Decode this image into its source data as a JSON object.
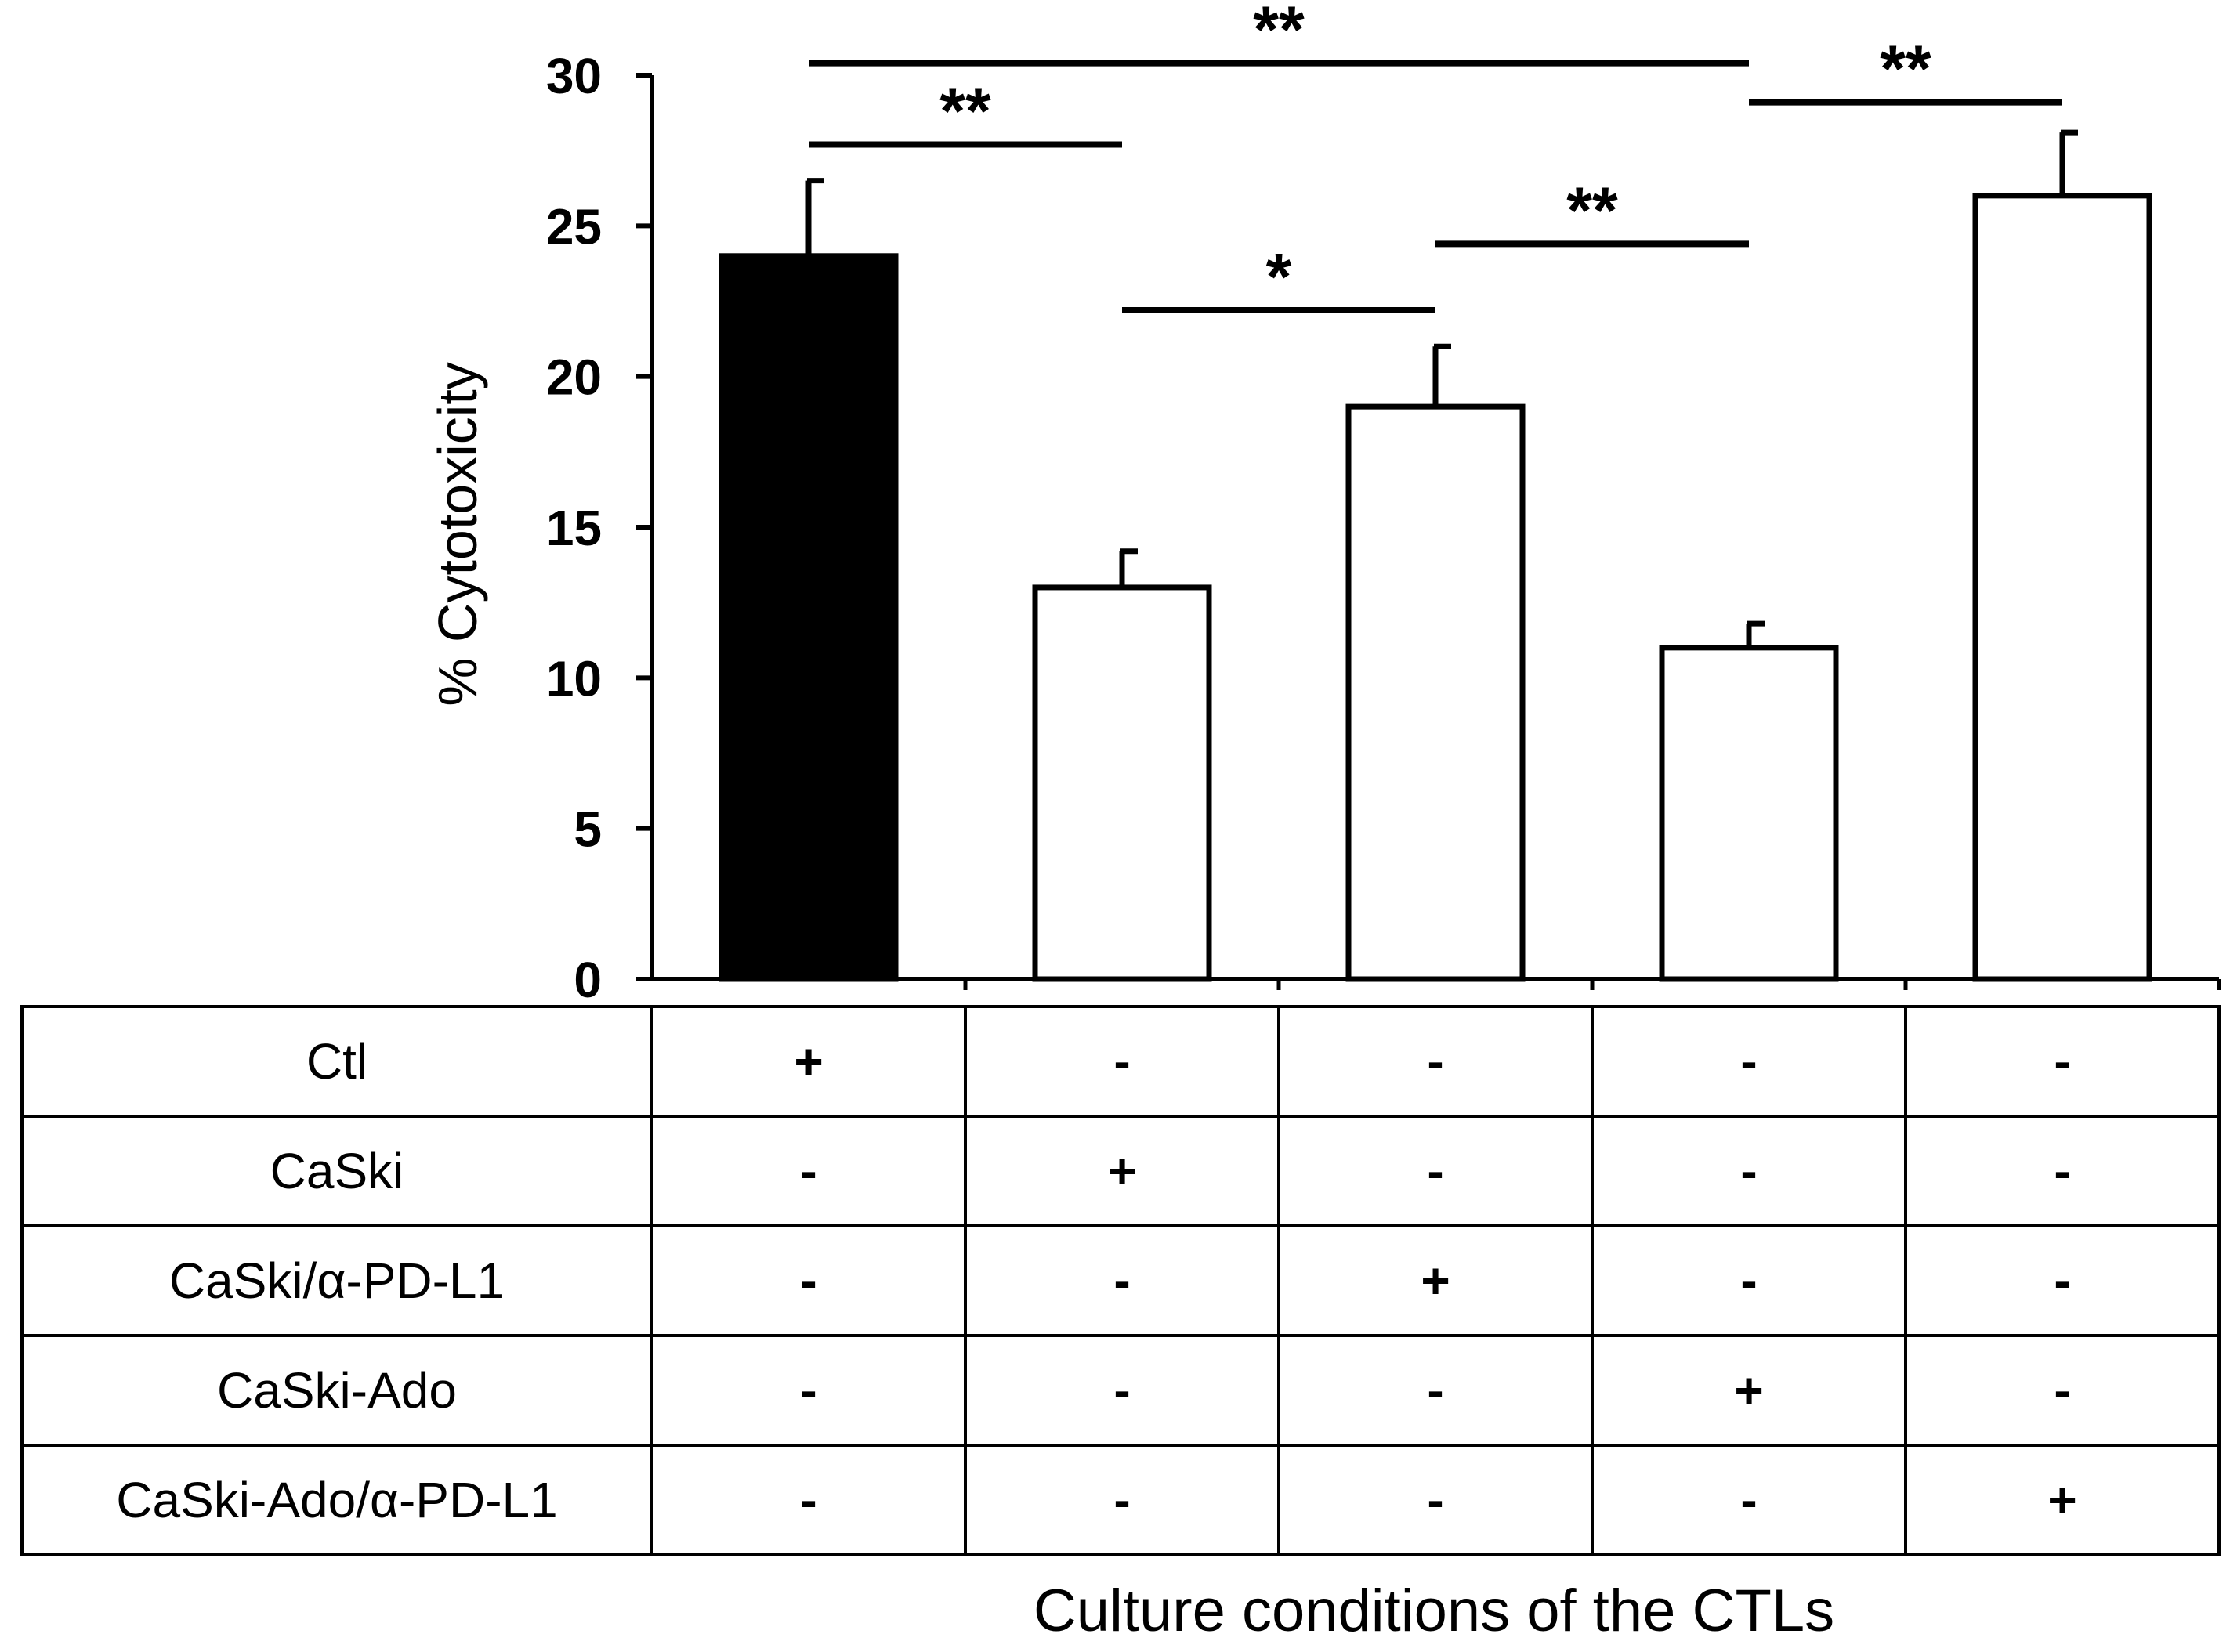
{
  "chart_data": {
    "type": "bar",
    "title": "",
    "xlabel": "Culture conditions of the CTLs",
    "ylabel": "% Cytotoxicity",
    "ylim": [
      0,
      30
    ],
    "yticks": [
      "0",
      "5",
      "10",
      "15",
      "20",
      "25",
      "30"
    ],
    "grid": false,
    "values": [
      24,
      13,
      19,
      11,
      26
    ],
    "errors": [
      2.5,
      1.2,
      2.0,
      0.8,
      2.1
    ],
    "bar_fill": [
      "#000000",
      "#ffffff",
      "#ffffff",
      "#ffffff",
      "#ffffff"
    ],
    "significance": [
      {
        "from": 0,
        "to": 1,
        "y": 27.7,
        "label": "**"
      },
      {
        "from": 0,
        "to": 3,
        "y": 30.4,
        "label": "**"
      },
      {
        "from": 1,
        "to": 2,
        "y": 22.2,
        "label": "*"
      },
      {
        "from": 2,
        "to": 3,
        "y": 24.4,
        "label": "**"
      },
      {
        "from": 3,
        "to": 4,
        "y": 29.1,
        "label": "**"
      }
    ],
    "table": {
      "row_labels": [
        "Ctl",
        "CaSki",
        "CaSki/α-PD-L1",
        "CaSki-Ado",
        "CaSki-Ado/α-PD-L1"
      ],
      "cells": [
        [
          "+",
          "-",
          "-",
          "-",
          "-"
        ],
        [
          "-",
          "+",
          "-",
          "-",
          "-"
        ],
        [
          "-",
          "-",
          "+",
          "-",
          "-"
        ],
        [
          "-",
          "-",
          "-",
          "+",
          "-"
        ],
        [
          "-",
          "-",
          "-",
          "-",
          "+"
        ]
      ]
    }
  }
}
